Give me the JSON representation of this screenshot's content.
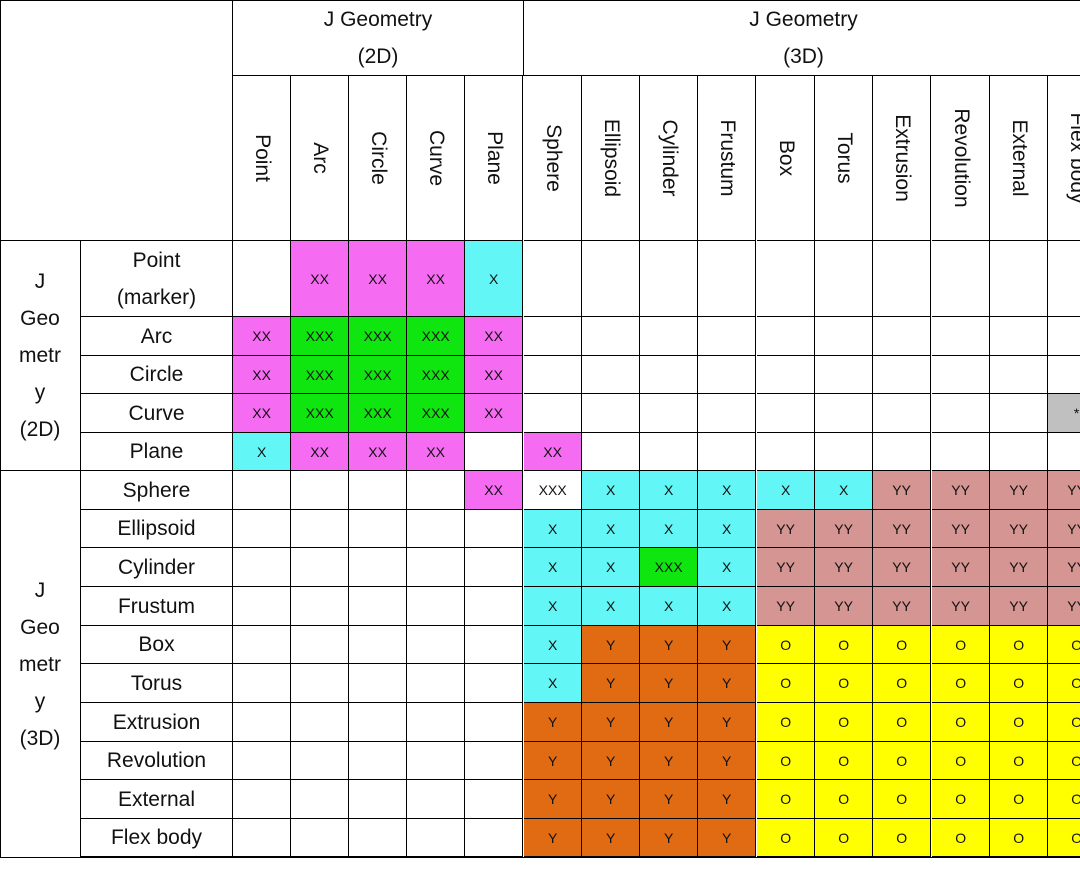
{
  "header": {
    "corner": "",
    "group_2d": [
      "J Geometry",
      "(2D)"
    ],
    "group_3d": [
      "J Geometry",
      "(3D)"
    ]
  },
  "columns": [
    "Point",
    "Arc",
    "Circle",
    "Curve",
    "Plane",
    "Sphere",
    "Ellipsoid",
    "Cylinder",
    "Frustum",
    "Box",
    "Torus",
    "Extrusion",
    "Revolution",
    "External",
    "Flex body"
  ],
  "row_groups": [
    {
      "lines": [
        "J",
        "Geo",
        "metr",
        "y",
        "(2D)"
      ]
    },
    {
      "lines": [
        "J",
        "Geo",
        "metr",
        "y",
        "(3D)"
      ]
    }
  ],
  "rows": [
    {
      "label": [
        "Point",
        "(marker)"
      ],
      "cells": [
        "",
        "XX",
        "XX",
        "XX",
        "X",
        "",
        "",
        "",
        "",
        "",
        "",
        "",
        "",
        "",
        ""
      ]
    },
    {
      "label": [
        "Arc"
      ],
      "cells": [
        "XX",
        "XXX",
        "XXX",
        "XXX",
        "XX",
        "",
        "",
        "",
        "",
        "",
        "",
        "",
        "",
        "",
        ""
      ]
    },
    {
      "label": [
        "Circle"
      ],
      "cells": [
        "XX",
        "XXX",
        "XXX",
        "XXX",
        "XX",
        "",
        "",
        "",
        "",
        "",
        "",
        "",
        "",
        "",
        ""
      ]
    },
    {
      "label": [
        "Curve"
      ],
      "cells": [
        "XX",
        "XXX",
        "XXX",
        "XXX",
        "XX",
        "",
        "",
        "",
        "",
        "",
        "",
        "",
        "",
        "",
        "*"
      ]
    },
    {
      "label": [
        "Plane"
      ],
      "cells": [
        "X",
        "XX",
        "XX",
        "XX",
        "",
        "XX",
        "",
        "",
        "",
        "",
        "",
        "",
        "",
        "",
        ""
      ]
    },
    {
      "label": [
        "Sphere"
      ],
      "cells": [
        "",
        "",
        "",
        "",
        "XX",
        "XXX",
        "X",
        "X",
        "X",
        "X",
        "X",
        "YY",
        "YY",
        "YY",
        "YY"
      ]
    },
    {
      "label": [
        "Ellipsoid"
      ],
      "cells": [
        "",
        "",
        "",
        "",
        "",
        "X",
        "X",
        "X",
        "X",
        "YY",
        "YY",
        "YY",
        "YY",
        "YY",
        "YY"
      ]
    },
    {
      "label": [
        "Cylinder"
      ],
      "cells": [
        "",
        "",
        "",
        "",
        "",
        "X",
        "X",
        "XXX",
        "X",
        "YY",
        "YY",
        "YY",
        "YY",
        "YY",
        "YY"
      ]
    },
    {
      "label": [
        "Frustum"
      ],
      "cells": [
        "",
        "",
        "",
        "",
        "",
        "X",
        "X",
        "X",
        "X",
        "YY",
        "YY",
        "YY",
        "YY",
        "YY",
        "YY"
      ]
    },
    {
      "label": [
        "Box"
      ],
      "cells": [
        "",
        "",
        "",
        "",
        "",
        "X",
        "Y",
        "Y",
        "Y",
        "O",
        "O",
        "O",
        "O",
        "O",
        "O"
      ]
    },
    {
      "label": [
        "Torus"
      ],
      "cells": [
        "",
        "",
        "",
        "",
        "",
        "X",
        "Y",
        "Y",
        "Y",
        "O",
        "O",
        "O",
        "O",
        "O",
        "O"
      ]
    },
    {
      "label": [
        "Extrusion"
      ],
      "cells": [
        "",
        "",
        "",
        "",
        "",
        "Y",
        "Y",
        "Y",
        "Y",
        "O",
        "O",
        "O",
        "O",
        "O",
        "O"
      ]
    },
    {
      "label": [
        "Revolution"
      ],
      "cells": [
        "",
        "",
        "",
        "",
        "",
        "Y",
        "Y",
        "Y",
        "Y",
        "O",
        "O",
        "O",
        "O",
        "O",
        "O"
      ]
    },
    {
      "label": [
        "External"
      ],
      "cells": [
        "",
        "",
        "",
        "",
        "",
        "Y",
        "Y",
        "Y",
        "Y",
        "O",
        "O",
        "O",
        "O",
        "O",
        "O"
      ]
    },
    {
      "label": [
        "Flex body"
      ],
      "cells": [
        "",
        "",
        "",
        "",
        "",
        "Y",
        "Y",
        "Y",
        "Y",
        "O",
        "O",
        "O",
        "O",
        "O",
        "O"
      ]
    }
  ],
  "fills": [
    [
      "w",
      "m",
      "m",
      "m",
      "c",
      "w",
      "w",
      "w",
      "w",
      "w",
      "w",
      "w",
      "w",
      "w",
      "w"
    ],
    [
      "m",
      "g",
      "g",
      "g",
      "m",
      "w",
      "w",
      "w",
      "w",
      "w",
      "w",
      "w",
      "w",
      "w",
      "w"
    ],
    [
      "m",
      "g",
      "g",
      "g",
      "m",
      "w",
      "w",
      "w",
      "w",
      "w",
      "w",
      "w",
      "w",
      "w",
      "w"
    ],
    [
      "m",
      "g",
      "g",
      "g",
      "m",
      "w",
      "w",
      "w",
      "w",
      "w",
      "w",
      "w",
      "w",
      "w",
      "s"
    ],
    [
      "c",
      "m",
      "m",
      "m",
      "w",
      "m",
      "w",
      "w",
      "w",
      "w",
      "w",
      "w",
      "w",
      "w",
      "w"
    ],
    [
      "w",
      "w",
      "w",
      "w",
      "m",
      "w",
      "c",
      "c",
      "c",
      "c",
      "c",
      "p",
      "p",
      "p",
      "p"
    ],
    [
      "w",
      "w",
      "w",
      "w",
      "w",
      "c",
      "c",
      "c",
      "c",
      "p",
      "p",
      "p",
      "p",
      "p",
      "p"
    ],
    [
      "w",
      "w",
      "w",
      "w",
      "w",
      "c",
      "c",
      "g",
      "c",
      "p",
      "p",
      "p",
      "p",
      "p",
      "p"
    ],
    [
      "w",
      "w",
      "w",
      "w",
      "w",
      "c",
      "c",
      "c",
      "c",
      "p",
      "p",
      "p",
      "p",
      "p",
      "p"
    ],
    [
      "w",
      "w",
      "w",
      "w",
      "w",
      "c",
      "o",
      "o",
      "o",
      "y",
      "y",
      "y",
      "y",
      "y",
      "y"
    ],
    [
      "w",
      "w",
      "w",
      "w",
      "w",
      "c",
      "o",
      "o",
      "o",
      "y",
      "y",
      "y",
      "y",
      "y",
      "y"
    ],
    [
      "w",
      "w",
      "w",
      "w",
      "w",
      "o",
      "o",
      "o",
      "o",
      "y",
      "y",
      "y",
      "y",
      "y",
      "y"
    ],
    [
      "w",
      "w",
      "w",
      "w",
      "w",
      "o",
      "o",
      "o",
      "o",
      "y",
      "y",
      "y",
      "y",
      "y",
      "y"
    ],
    [
      "w",
      "w",
      "w",
      "w",
      "w",
      "o",
      "o",
      "o",
      "o",
      "y",
      "y",
      "y",
      "y",
      "y",
      "y"
    ],
    [
      "w",
      "w",
      "w",
      "w",
      "w",
      "o",
      "o",
      "o",
      "o",
      "y",
      "y",
      "y",
      "y",
      "y",
      "y"
    ]
  ],
  "colors": {
    "w": "#ffffff",
    "m": "#f56cf2",
    "c": "#62f6f6",
    "g": "#0fe60f",
    "s": "#c0c0c0",
    "p": "#d49593",
    "o": "#e06b12",
    "y": "#ffff00"
  }
}
